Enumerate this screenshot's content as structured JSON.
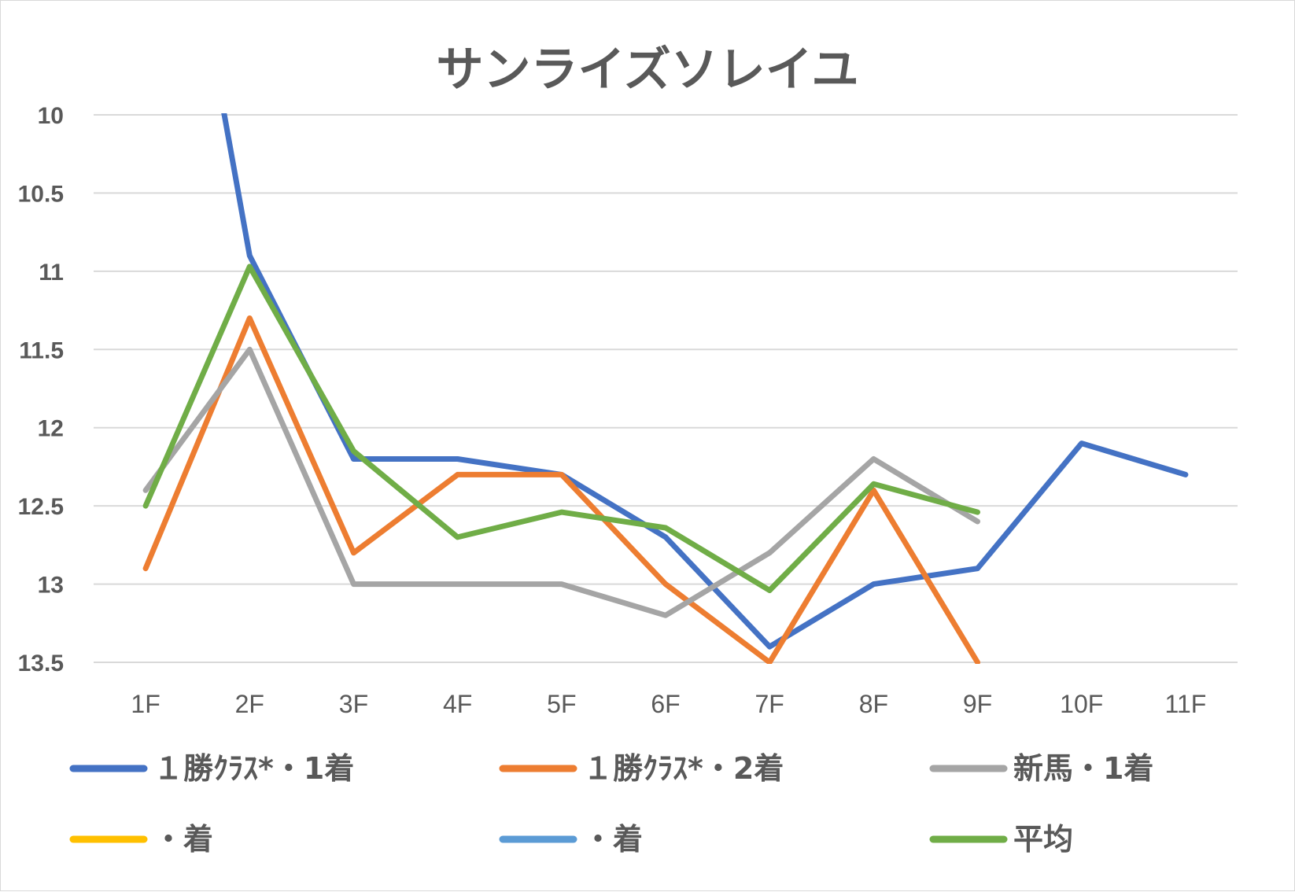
{
  "chart_data": {
    "type": "line",
    "title": "サンライズソレイユ",
    "xlabel": "",
    "ylabel": "",
    "categories": [
      "1F",
      "2F",
      "3F",
      "4F",
      "5F",
      "6F",
      "7F",
      "8F",
      "9F",
      "10F",
      "11F"
    ],
    "y_ticks": [
      "10",
      "10.5",
      "11",
      "11.5",
      "12",
      "12.5",
      "13",
      "13.5"
    ],
    "y_tick_values": [
      10,
      10.5,
      11,
      11.5,
      12,
      12.5,
      13,
      13.5
    ],
    "ylim": [
      10,
      13.5
    ],
    "y_inverted": true,
    "grid": true,
    "legend_position": "bottom",
    "series": [
      {
        "name": "１勝ｸﾗｽ*・1着",
        "color": "#4472c4",
        "values": [
          7.2,
          10.9,
          12.2,
          12.2,
          12.3,
          12.7,
          13.4,
          13.0,
          12.9,
          12.1,
          12.3
        ]
      },
      {
        "name": "１勝ｸﾗｽ*・2着",
        "color": "#ed7d31",
        "values": [
          12.9,
          11.3,
          12.8,
          12.3,
          12.3,
          13.0,
          13.5,
          12.4,
          13.5,
          null,
          null
        ]
      },
      {
        "name": "新馬・1着",
        "color": "#a5a5a5",
        "values": [
          12.4,
          11.5,
          13.0,
          13.0,
          13.0,
          13.2,
          12.8,
          12.2,
          12.6,
          null,
          null
        ]
      },
      {
        "name": "・着",
        "color": "#ffc000",
        "values": [
          null,
          null,
          null,
          null,
          null,
          null,
          null,
          null,
          null,
          null,
          null
        ]
      },
      {
        "name": "・着",
        "color": "#5b9bd5",
        "values": [
          null,
          null,
          null,
          null,
          null,
          null,
          null,
          null,
          null,
          null,
          null
        ]
      },
      {
        "name": "平均",
        "color": "#70ad47",
        "values": [
          12.5,
          10.97,
          12.15,
          12.7,
          12.54,
          12.64,
          13.04,
          12.36,
          12.54,
          null,
          null
        ]
      }
    ]
  }
}
